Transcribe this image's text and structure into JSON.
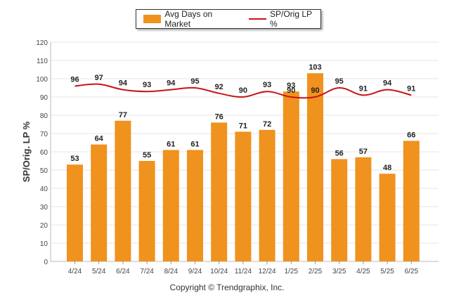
{
  "chart_data": {
    "type": "bar",
    "categories": [
      "4/24",
      "5/24",
      "6/24",
      "7/24",
      "8/24",
      "9/24",
      "10/24",
      "11/24",
      "12/24",
      "1/25",
      "2/25",
      "3/25",
      "4/25",
      "5/25",
      "6/25"
    ],
    "series": [
      {
        "name": "Avg Days on Market",
        "type": "bar",
        "color": "#f0921e",
        "values": [
          53,
          64,
          77,
          55,
          61,
          61,
          76,
          71,
          72,
          93,
          103,
          56,
          57,
          48,
          66
        ]
      },
      {
        "name": "SP/Orig LP %",
        "type": "line",
        "color": "#c81414",
        "values": [
          96,
          97,
          94,
          93,
          94,
          95,
          92,
          90,
          93,
          90,
          90,
          95,
          91,
          94,
          91
        ]
      }
    ],
    "ylabel": "SP/Orig. LP %",
    "ylim": [
      0,
      120
    ],
    "yticks": [
      0,
      10,
      20,
      30,
      40,
      50,
      60,
      70,
      80,
      90,
      100,
      110,
      120
    ],
    "grid": true,
    "legend": "top-center"
  },
  "footer": {
    "copyright": "Copyright © Trendgraphix, Inc."
  }
}
